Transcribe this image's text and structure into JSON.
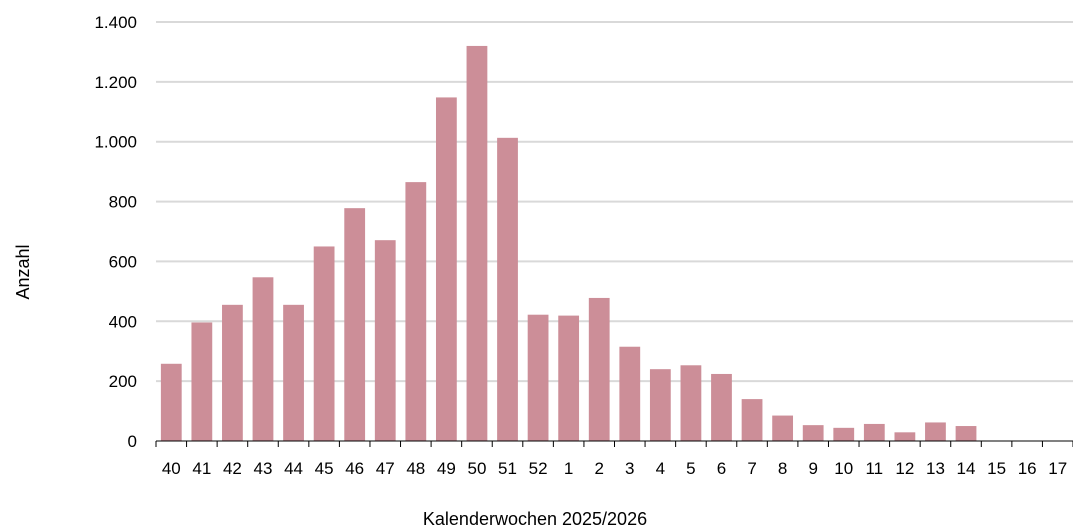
{
  "chart_data": {
    "type": "bar",
    "title": "",
    "xlabel": "Kalenderwochen 2025/2026",
    "ylabel": "Anzahl",
    "ylim": [
      0,
      1400
    ],
    "y_ticks": [
      0,
      200,
      400,
      600,
      800,
      1000,
      1200,
      1400
    ],
    "y_tick_labels": [
      "0",
      "200",
      "400",
      "600",
      "800",
      "1.000",
      "1.200",
      "1.400"
    ],
    "grid": "horizontal",
    "categories": [
      "40",
      "41",
      "42",
      "43",
      "44",
      "45",
      "46",
      "47",
      "48",
      "49",
      "50",
      "51",
      "52",
      "1",
      "2",
      "3",
      "4",
      "5",
      "6",
      "7",
      "8",
      "9",
      "10",
      "11",
      "12",
      "13",
      "14",
      "15",
      "16",
      "17"
    ],
    "values": [
      258,
      396,
      455,
      547,
      455,
      650,
      778,
      671,
      865,
      1148,
      1320,
      1013,
      422,
      419,
      478,
      315,
      240,
      253,
      224,
      140,
      85,
      53,
      44,
      57,
      29,
      62,
      50,
      0,
      0,
      0
    ],
    "colors": {
      "bar": "#cc8e98",
      "grid": "#d9d9d9",
      "axis": "#000000"
    }
  }
}
